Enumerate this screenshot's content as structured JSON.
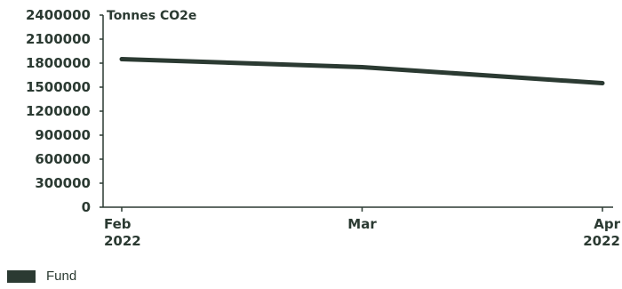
{
  "chart_data": {
    "type": "line",
    "title": "",
    "ylabel": "Tonnes CO2e",
    "xlabel": "",
    "ylim": [
      0,
      2400000
    ],
    "y_ticks": [
      "0",
      "300000",
      "600000",
      "900000",
      "1200000",
      "1500000",
      "1800000",
      "2100000",
      "2400000"
    ],
    "categories": [
      {
        "line1": "Feb",
        "line2": "2022"
      },
      {
        "line1": "Mar",
        "line2": ""
      },
      {
        "line1": "Apr",
        "line2": "2022"
      }
    ],
    "series": [
      {
        "name": "Fund",
        "color": "#2b3a32",
        "values": [
          1850000,
          1750000,
          1550000
        ]
      }
    ],
    "legend": "bottom-left",
    "grid": false
  }
}
